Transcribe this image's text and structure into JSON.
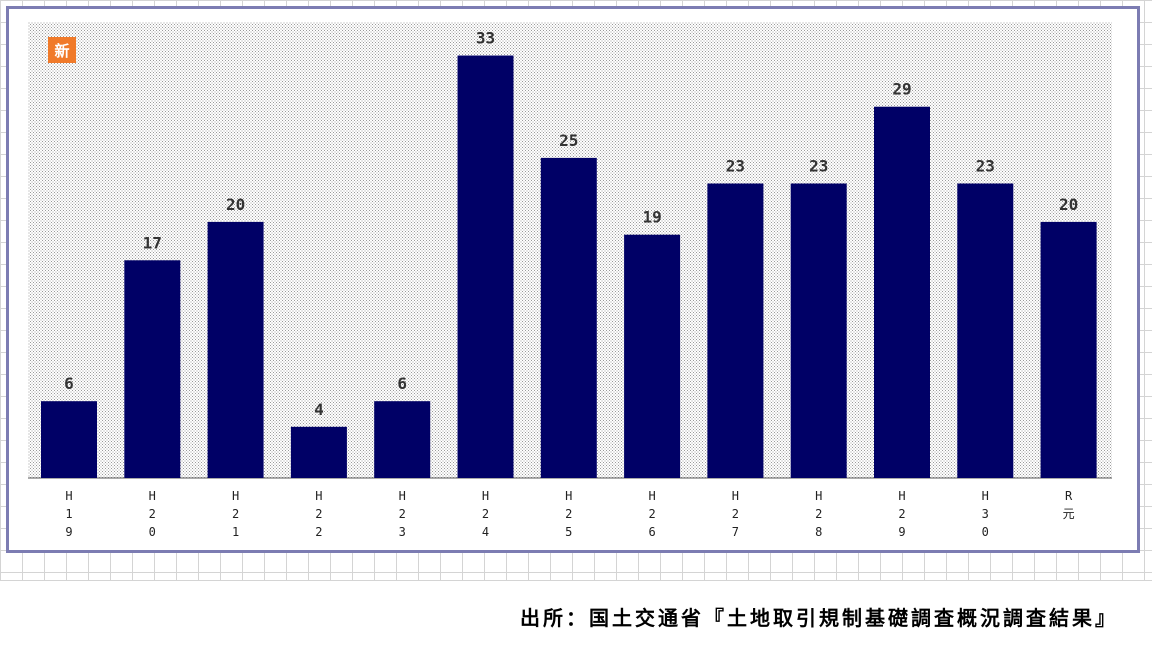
{
  "badge_label": "新",
  "source_text": "出所：国土交通省『土地取引規制基礎調査概況調査結果』",
  "colors": {
    "bar": "#000066",
    "frame": "#7c7cb2",
    "badge": "#f07a2a",
    "plot_dots": "#9a9a9a"
  },
  "chart_data": {
    "type": "bar",
    "title": "",
    "xlabel": "",
    "ylabel": "",
    "categories": [
      "H19",
      "H20",
      "H21",
      "H22",
      "H23",
      "H24",
      "H25",
      "H26",
      "H27",
      "H28",
      "H29",
      "H30",
      "R元"
    ],
    "category_labels": [
      [
        "H",
        "1",
        "9"
      ],
      [
        "H",
        "2",
        "0"
      ],
      [
        "H",
        "2",
        "1"
      ],
      [
        "H",
        "2",
        "2"
      ],
      [
        "H",
        "2",
        "3"
      ],
      [
        "H",
        "2",
        "4"
      ],
      [
        "H",
        "2",
        "5"
      ],
      [
        "H",
        "2",
        "6"
      ],
      [
        "H",
        "2",
        "7"
      ],
      [
        "H",
        "2",
        "8"
      ],
      [
        "H",
        "2",
        "9"
      ],
      [
        "H",
        "3",
        "0"
      ],
      [
        "R",
        "元"
      ]
    ],
    "values": [
      6,
      17,
      20,
      4,
      6,
      33,
      25,
      19,
      23,
      23,
      29,
      23,
      20
    ],
    "ylim": [
      0,
      35
    ],
    "grid": false,
    "legend": "none",
    "data_labels": true
  }
}
